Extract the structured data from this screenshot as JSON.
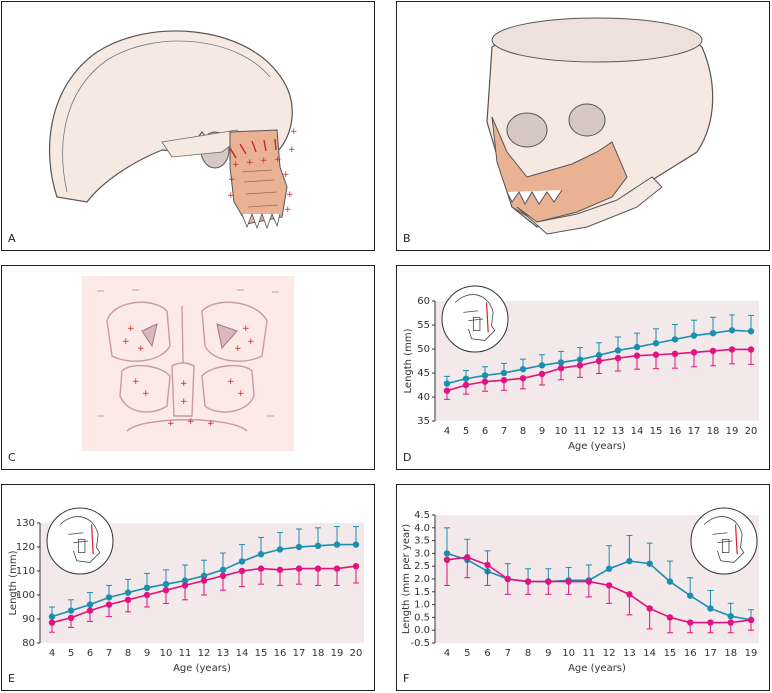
{
  "panels": {
    "A": "A",
    "B": "B",
    "C": "C",
    "D": "D",
    "E": "E",
    "F": "F"
  },
  "colors": {
    "bone_fill": "#f5e9e2",
    "bone_stroke": "#555555",
    "jaw_fill": "#e9b293",
    "arrow": "#d5202a",
    "plot_bg": "#f3e8ea",
    "series_blue": "#1a8fb0",
    "series_magenta": "#e0147f",
    "growth_line": "#c99aa4",
    "growth_fill": "#fbeae6"
  },
  "chart_data": [
    {
      "id": "D",
      "type": "line",
      "x": [
        4,
        5,
        6,
        7,
        8,
        9,
        10,
        11,
        12,
        13,
        14,
        15,
        16,
        17,
        18,
        19,
        20
      ],
      "xticks": [
        "4",
        "5",
        "6",
        "7",
        "8",
        "9",
        "10",
        "11",
        "12",
        "13",
        "14",
        "15",
        "16",
        "17",
        "18",
        "19",
        "20"
      ],
      "xlabel": "Age (years)",
      "ylabel": "Length (mm)",
      "ylim": [
        35,
        60
      ],
      "yticks": [
        35,
        40,
        45,
        50,
        55,
        60
      ],
      "series": [
        {
          "color": "blue",
          "values": [
            42.8,
            43.8,
            44.5,
            45.0,
            45.8,
            46.6,
            47.2,
            47.8,
            48.7,
            49.7,
            50.4,
            51.2,
            52.0,
            52.8,
            53.3,
            53.9,
            53.7
          ],
          "err": [
            1.5,
            1.7,
            1.8,
            2.0,
            2.1,
            2.2,
            2.3,
            2.5,
            2.6,
            2.8,
            2.9,
            3.0,
            3.1,
            3.2,
            3.3,
            3.2,
            3.3
          ],
          "err_dir": "up"
        },
        {
          "color": "magenta",
          "values": [
            41.3,
            42.5,
            43.2,
            43.5,
            43.9,
            44.8,
            46.0,
            46.6,
            47.5,
            48.1,
            48.6,
            48.8,
            49.0,
            49.3,
            49.6,
            49.9,
            49.9
          ],
          "err": [
            1.8,
            1.9,
            2.0,
            2.1,
            2.2,
            2.3,
            2.4,
            2.5,
            2.6,
            2.7,
            2.8,
            2.9,
            3.0,
            3.0,
            3.1,
            3.0,
            3.1
          ],
          "err_dir": "down"
        }
      ]
    },
    {
      "id": "E",
      "type": "line",
      "x": [
        4,
        5,
        6,
        7,
        8,
        9,
        10,
        11,
        12,
        13,
        14,
        15,
        16,
        17,
        18,
        19,
        20
      ],
      "xticks": [
        "4",
        "5",
        "6",
        "7",
        "8",
        "9",
        "10",
        "11",
        "12",
        "13",
        "14",
        "15",
        "16",
        "17",
        "18",
        "19",
        "20"
      ],
      "xlabel": "Age (years)",
      "ylabel": "Length (mm)",
      "ylim": [
        80,
        130
      ],
      "yticks": [
        80,
        90,
        100,
        110,
        120,
        130
      ],
      "series": [
        {
          "color": "blue",
          "values": [
            91,
            93.5,
            96,
            99,
            101,
            103,
            104.5,
            106,
            108,
            110.5,
            114,
            117,
            119,
            120,
            120.5,
            121,
            121
          ],
          "err": [
            4,
            4.5,
            5,
            5,
            5.5,
            6,
            6,
            6.5,
            6.5,
            7,
            7,
            7,
            7,
            7.5,
            7.5,
            7.5,
            7.5
          ],
          "err_dir": "up"
        },
        {
          "color": "magenta",
          "values": [
            88.5,
            90.5,
            93.5,
            96,
            98,
            100,
            102,
            104,
            106,
            108,
            110,
            111,
            110.5,
            111,
            111,
            111,
            112
          ],
          "err": [
            4,
            4,
            4.5,
            5,
            5,
            5,
            5.5,
            6,
            6,
            6,
            6.5,
            6.5,
            6.5,
            6.5,
            7,
            7,
            7
          ],
          "err_dir": "down"
        }
      ]
    },
    {
      "id": "F",
      "type": "line",
      "x": [
        4,
        5,
        6,
        7,
        8,
        9,
        10,
        11,
        12,
        13,
        14,
        15,
        16,
        17,
        18,
        19
      ],
      "xticks": [
        "4",
        "5",
        "6",
        "7",
        "8",
        "9",
        "10",
        "11",
        "12",
        "13",
        "14",
        "15",
        "16",
        "17",
        "18",
        "19"
      ],
      "xlabel": "Age (years)",
      "ylabel": "Length (mm per year)",
      "ylim": [
        -0.5,
        4.5
      ],
      "yticks": [
        "4.5",
        "4.0",
        "3.5",
        "3.0",
        "2.5",
        "2.0",
        "1.5",
        "1.0",
        "0.5",
        "0.0",
        "-0.5"
      ],
      "series": [
        {
          "color": "blue",
          "values": [
            3.0,
            2.75,
            2.3,
            2.0,
            1.9,
            1.9,
            1.95,
            1.95,
            2.4,
            2.7,
            2.6,
            1.9,
            1.35,
            0.85,
            0.55,
            0.4
          ],
          "err": [
            1.0,
            0.8,
            0.8,
            0.6,
            0.5,
            0.5,
            0.5,
            0.6,
            0.9,
            1.0,
            0.8,
            0.8,
            0.7,
            0.7,
            0.5,
            0.4
          ],
          "err_dir": "up"
        },
        {
          "color": "magenta",
          "values": [
            2.75,
            2.85,
            2.55,
            2.0,
            1.9,
            1.9,
            1.9,
            1.9,
            1.75,
            1.4,
            0.85,
            0.5,
            0.3,
            0.3,
            0.3,
            0.4
          ],
          "err": [
            1.0,
            0.8,
            0.8,
            0.6,
            0.5,
            0.5,
            0.5,
            0.6,
            0.7,
            0.8,
            0.8,
            0.6,
            0.4,
            0.4,
            0.4,
            0.4
          ],
          "err_dir": "down"
        }
      ]
    }
  ]
}
